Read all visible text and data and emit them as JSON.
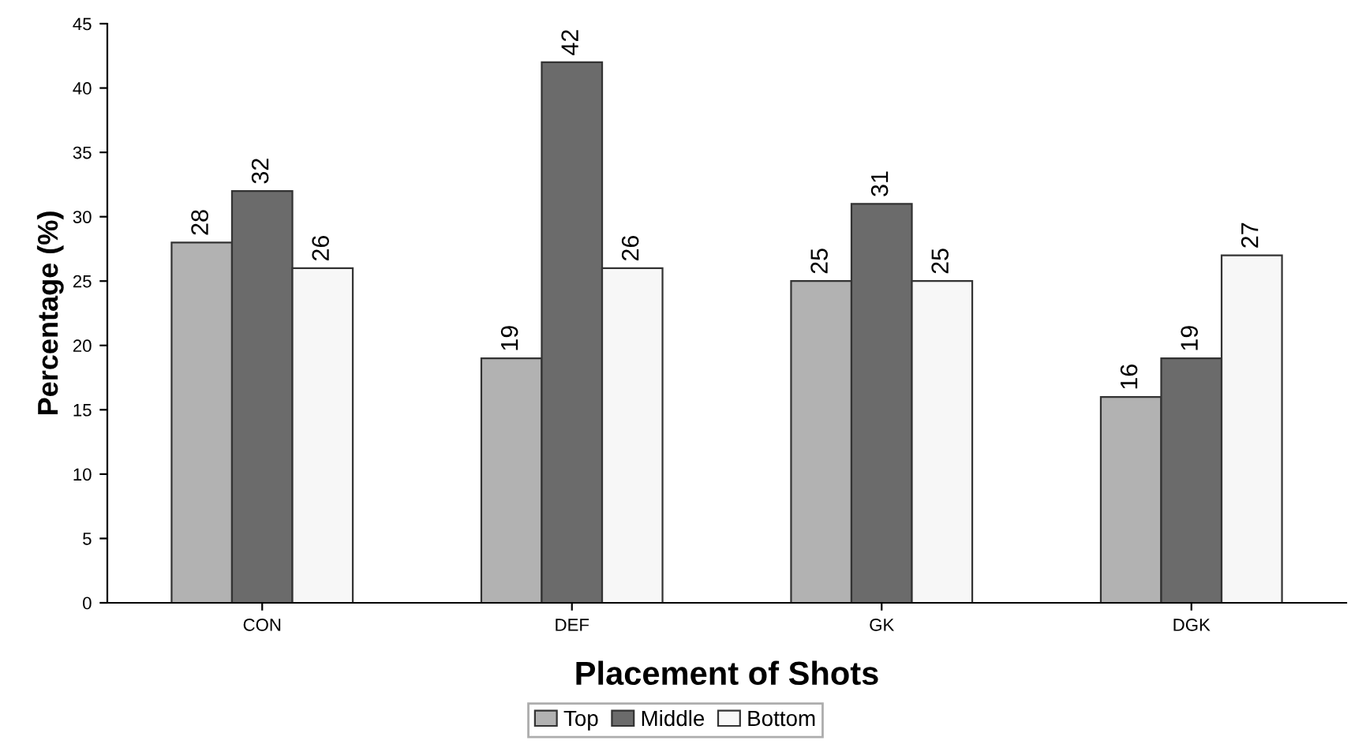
{
  "chart_data": {
    "type": "bar",
    "xlabel": "Placement of Shots",
    "ylabel": "Percentage (%)",
    "categories": [
      "CON",
      "DEF",
      "GK",
      "DGK"
    ],
    "series": [
      {
        "name": "Top",
        "color": "#b2b2b2",
        "values": [
          28,
          19,
          25,
          16
        ]
      },
      {
        "name": "Middle",
        "color": "#6b6b6b",
        "values": [
          32,
          42,
          31,
          19
        ]
      },
      {
        "name": "Bottom",
        "color": "#f7f7f7",
        "values": [
          26,
          26,
          25,
          27
        ]
      }
    ],
    "ylim": [
      0,
      45
    ],
    "yticks": [
      0,
      5,
      10,
      15,
      20,
      25,
      30,
      35,
      40,
      45
    ],
    "grid": false,
    "legend": "bottom",
    "data_labels": true
  }
}
